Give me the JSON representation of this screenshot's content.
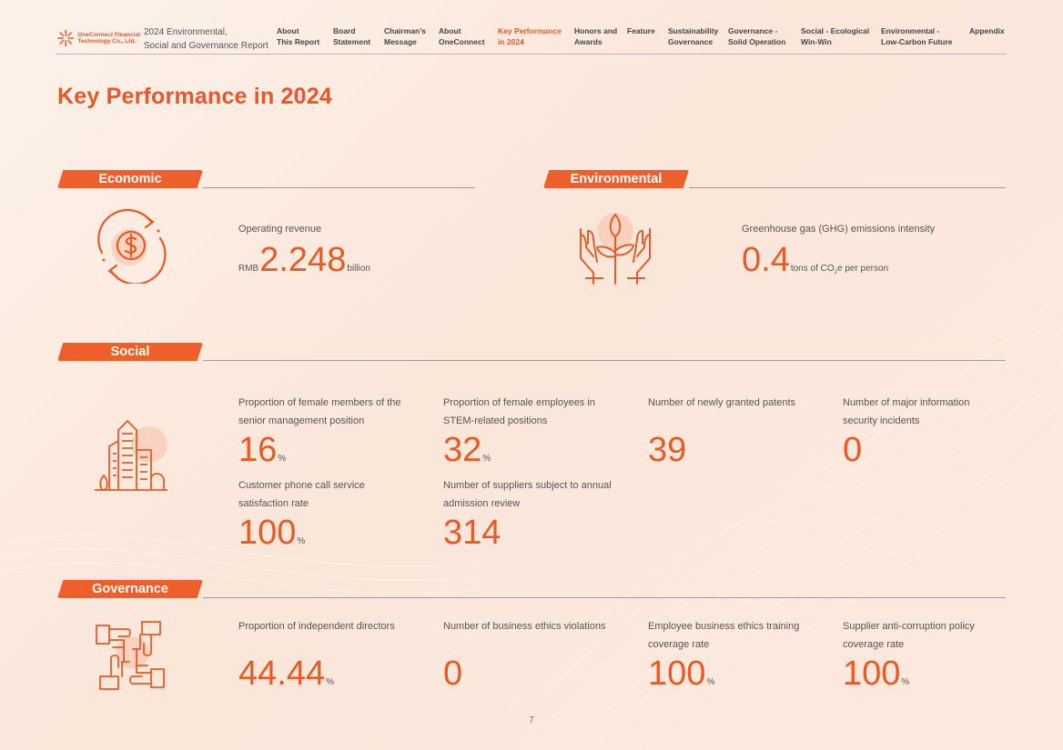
{
  "header": {
    "logo_text_line1": "OneConnect Financial",
    "logo_text_line2": "Technology Co., Ltd.",
    "report_title_line1": "2024 Environmental,",
    "report_title_line2": "Social and Governance Report",
    "nav": [
      {
        "line1": "About",
        "line2": "This Report"
      },
      {
        "line1": "Board",
        "line2": "Statement"
      },
      {
        "line1": "Chairman’s",
        "line2": "Message"
      },
      {
        "line1": "About",
        "line2": "OneConnect"
      },
      {
        "line1": "Key Performance",
        "line2": "in 2024"
      },
      {
        "line1": "Honors and",
        "line2": "Awards"
      },
      {
        "line1": "Feature",
        "line2": ""
      },
      {
        "line1": "Sustainability",
        "line2": "Governance"
      },
      {
        "line1": "Governance -",
        "line2": "Solid Operation"
      },
      {
        "line1": "Social - Ecological",
        "line2": "Win-Win"
      },
      {
        "line1": "Environmental -",
        "line2": "Low-Carbon Future"
      },
      {
        "line1": "Appendix",
        "line2": ""
      }
    ],
    "accent": "#ea5a24"
  },
  "page_title": "Key Performance in 2024",
  "sections": {
    "economic": {
      "title": "Economic",
      "icon": "dollar-cycle-icon",
      "kpis": [
        {
          "label": "Operating revenue",
          "prefix": "RMB",
          "value": "2.248",
          "unit": "billion"
        }
      ]
    },
    "environmental": {
      "title": "Environmental",
      "icon": "hands-plant-icon",
      "kpis": [
        {
          "label": "Greenhouse gas (GHG) emissions intensity",
          "value": "0.4",
          "unit_pre": "tons of CO",
          "unit_sub": "2",
          "unit_post": "e per person"
        }
      ]
    },
    "social": {
      "title": "Social",
      "icon": "city-buildings-icon",
      "kpis": [
        {
          "label": "Proportion of female members of the senior management position",
          "value": "16",
          "unit": "%"
        },
        {
          "label": "Proportion of female employees in STEM-related positions",
          "value": "32",
          "unit": "%"
        },
        {
          "label": "Number of newly granted patents",
          "value": "39",
          "unit": ""
        },
        {
          "label": "Number of major information security incidents",
          "value": "0",
          "unit": ""
        },
        {
          "label": "Customer phone call service satisfaction rate",
          "value": "100",
          "unit": "%"
        },
        {
          "label": "Number of suppliers subject to annual admission review",
          "value": "314",
          "unit": ""
        }
      ]
    },
    "governance": {
      "title": "Governance",
      "icon": "hands-together-icon",
      "kpis": [
        {
          "label": "Proportion of independent directors",
          "value": "44.44",
          "unit": "%"
        },
        {
          "label": "Number of business ethics violations",
          "value": "0",
          "unit": ""
        },
        {
          "label": "Employee business ethics training coverage rate",
          "value": "100",
          "unit": "%"
        },
        {
          "label": "Supplier anti-corruption policy coverage rate",
          "value": "100",
          "unit": "%"
        }
      ]
    }
  },
  "page_number": "7"
}
